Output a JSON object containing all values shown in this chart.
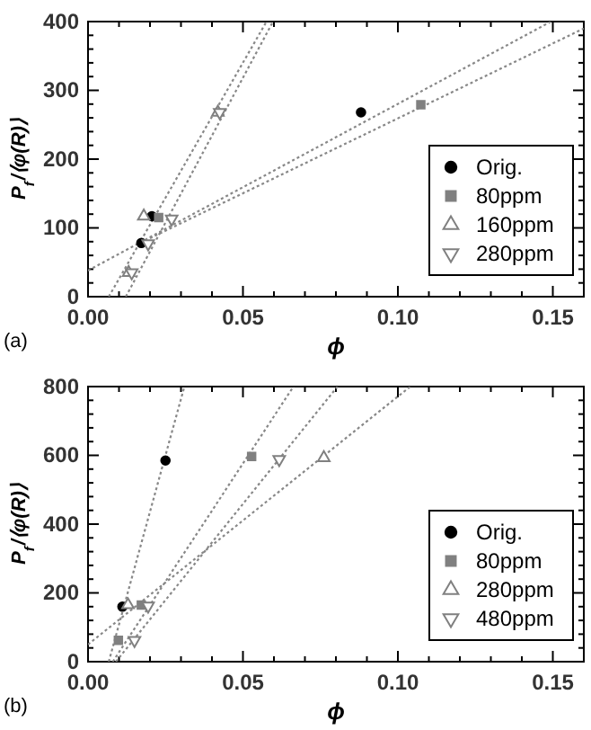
{
  "chart_data": [
    {
      "type": "scatter",
      "xlabel": "ϕ",
      "ylabel": "P$_{f}$/⟨φ(R)⟩",
      "annotations": [
        "(a)"
      ],
      "legend": "bottom right",
      "line_style": "dotted",
      "xlim": [
        0,
        0.16
      ],
      "ylim": [
        0,
        400
      ],
      "xticks": [
        {
          "value": 0,
          "label": "0.00"
        },
        {
          "value": 0.01,
          "label": null
        },
        {
          "value": 0.02,
          "label": null
        },
        {
          "value": 0.03,
          "label": null
        },
        {
          "value": 0.04,
          "label": null
        },
        {
          "value": 0.05,
          "label": "0.05"
        },
        {
          "value": 0.06,
          "label": null
        },
        {
          "value": 0.07,
          "label": null
        },
        {
          "value": 0.08,
          "label": null
        },
        {
          "value": 0.09,
          "label": null
        },
        {
          "value": 0.1,
          "label": "0.10"
        },
        {
          "value": 0.11,
          "label": null
        },
        {
          "value": 0.12,
          "label": null
        },
        {
          "value": 0.13,
          "label": null
        },
        {
          "value": 0.14,
          "label": null
        },
        {
          "value": 0.15,
          "label": "0.15"
        },
        {
          "value": 0.16,
          "label": null
        }
      ],
      "yticks": [
        0,
        {
          "value": 20,
          "label": null
        },
        {
          "value": 40,
          "label": null
        },
        {
          "value": 60,
          "label": null
        },
        {
          "value": 80,
          "label": null
        },
        100,
        {
          "value": 120,
          "label": null
        },
        {
          "value": 140,
          "label": null
        },
        {
          "value": 160,
          "label": null
        },
        {
          "value": 180,
          "label": null
        },
        200,
        {
          "value": 220,
          "label": null
        },
        {
          "value": 240,
          "label": null
        },
        {
          "value": 260,
          "label": null
        },
        {
          "value": 280,
          "label": null
        },
        300,
        {
          "value": 320,
          "label": null
        },
        {
          "value": 340,
          "label": null
        },
        {
          "value": 360,
          "label": null
        },
        {
          "value": 380,
          "label": null
        },
        400
      ],
      "series": [
        {
          "type": "line",
          "color": "#888888",
          "x": [
            0,
            0.1494
          ],
          "values": [
            38,
            400
          ]
        },
        {
          "type": "line",
          "color": "#888888",
          "x": [
            0.02,
            0.16
          ],
          "values": [
            85,
            390
          ]
        },
        {
          "type": "line",
          "color": "#888888",
          "x": [
            0.0067,
            0.0576
          ],
          "values": [
            0,
            400
          ]
        },
        {
          "type": "line",
          "color": "#888888",
          "x": [
            0.0122,
            0.0597
          ],
          "values": [
            0,
            400
          ]
        },
        {
          "name": "Orig.",
          "marker": "circle",
          "color": "#000000",
          "x": [
            0.0172,
            0.0206,
            0.0881
          ],
          "values": [
            78,
            117,
            268
          ]
        },
        {
          "name": "80ppm",
          "marker": "square",
          "color": "#808080",
          "x": [
            0.0228,
            0.1074
          ],
          "values": [
            115,
            279
          ]
        },
        {
          "name": "160ppm",
          "marker": "triangle",
          "color": "#808080",
          "x": [
            0.0131,
            0.018,
            0.0419
          ],
          "values": [
            35,
            117,
            268
          ]
        },
        {
          "name": "280ppm",
          "marker": "triangle-down",
          "color": "#808080",
          "x": [
            0.0141,
            0.0194,
            0.027,
            0.0425
          ],
          "values": [
            35,
            77,
            113,
            268
          ]
        }
      ]
    },
    {
      "type": "scatter",
      "xlabel": "ϕ",
      "ylabel": "P$_{f}$/⟨φ(R)⟩",
      "annotations": [
        "(b)"
      ],
      "legend": "bottom right",
      "line_style": "dotted",
      "xlim": [
        0,
        0.16
      ],
      "ylim": [
        0,
        800
      ],
      "xticks": [
        {
          "value": 0,
          "label": "0.00"
        },
        {
          "value": 0.01,
          "label": null
        },
        {
          "value": 0.02,
          "label": null
        },
        {
          "value": 0.03,
          "label": null
        },
        {
          "value": 0.04,
          "label": null
        },
        {
          "value": 0.05,
          "label": "0.05"
        },
        {
          "value": 0.06,
          "label": null
        },
        {
          "value": 0.07,
          "label": null
        },
        {
          "value": 0.08,
          "label": null
        },
        {
          "value": 0.09,
          "label": null
        },
        {
          "value": 0.1,
          "label": "0.10"
        },
        {
          "value": 0.11,
          "label": null
        },
        {
          "value": 0.12,
          "label": null
        },
        {
          "value": 0.13,
          "label": null
        },
        {
          "value": 0.14,
          "label": null
        },
        {
          "value": 0.15,
          "label": "0.15"
        },
        {
          "value": 0.16,
          "label": null
        }
      ],
      "yticks": [
        0,
        {
          "value": 40,
          "label": null
        },
        {
          "value": 80,
          "label": null
        },
        {
          "value": 120,
          "label": null
        },
        {
          "value": 160,
          "label": null
        },
        200,
        {
          "value": 240,
          "label": null
        },
        {
          "value": 280,
          "label": null
        },
        {
          "value": 320,
          "label": null
        },
        {
          "value": 360,
          "label": null
        },
        400,
        {
          "value": 440,
          "label": null
        },
        {
          "value": 480,
          "label": null
        },
        {
          "value": 520,
          "label": null
        },
        {
          "value": 560,
          "label": null
        },
        600,
        {
          "value": 640,
          "label": null
        },
        {
          "value": 680,
          "label": null
        },
        {
          "value": 720,
          "label": null
        },
        {
          "value": 760,
          "label": null
        },
        800
      ],
      "series": [
        {
          "type": "line",
          "color": "#888888",
          "x": [
            0.0067,
            0.0311
          ],
          "values": [
            0,
            800
          ]
        },
        {
          "type": "line",
          "color": "#888888",
          "x": [
            0.008,
            0.0663
          ],
          "values": [
            0,
            800
          ]
        },
        {
          "type": "line",
          "color": "#888888",
          "x": [
            0.009,
            0.0805
          ],
          "values": [
            0,
            800
          ]
        },
        {
          "type": "line",
          "color": "#888888",
          "x": [
            0,
            0.104
          ],
          "values": [
            50,
            800
          ]
        },
        {
          "name": "Orig.",
          "marker": "circle",
          "color": "#000000",
          "x": [
            0.0111,
            0.025
          ],
          "values": [
            160,
            585
          ]
        },
        {
          "name": "80ppm",
          "marker": "square",
          "color": "#808080",
          "x": [
            0.0098,
            0.0172,
            0.0528
          ],
          "values": [
            62,
            165,
            597
          ]
        },
        {
          "name": "280ppm",
          "marker": "triangle",
          "color": "#808080",
          "x": [
            0.0129,
            0.0761
          ],
          "values": [
            165,
            593
          ]
        },
        {
          "name": "480ppm",
          "marker": "triangle-down",
          "color": "#808080",
          "x": [
            0.015,
            0.0194,
            0.0617
          ],
          "values": [
            62,
            162,
            588
          ]
        }
      ]
    }
  ]
}
